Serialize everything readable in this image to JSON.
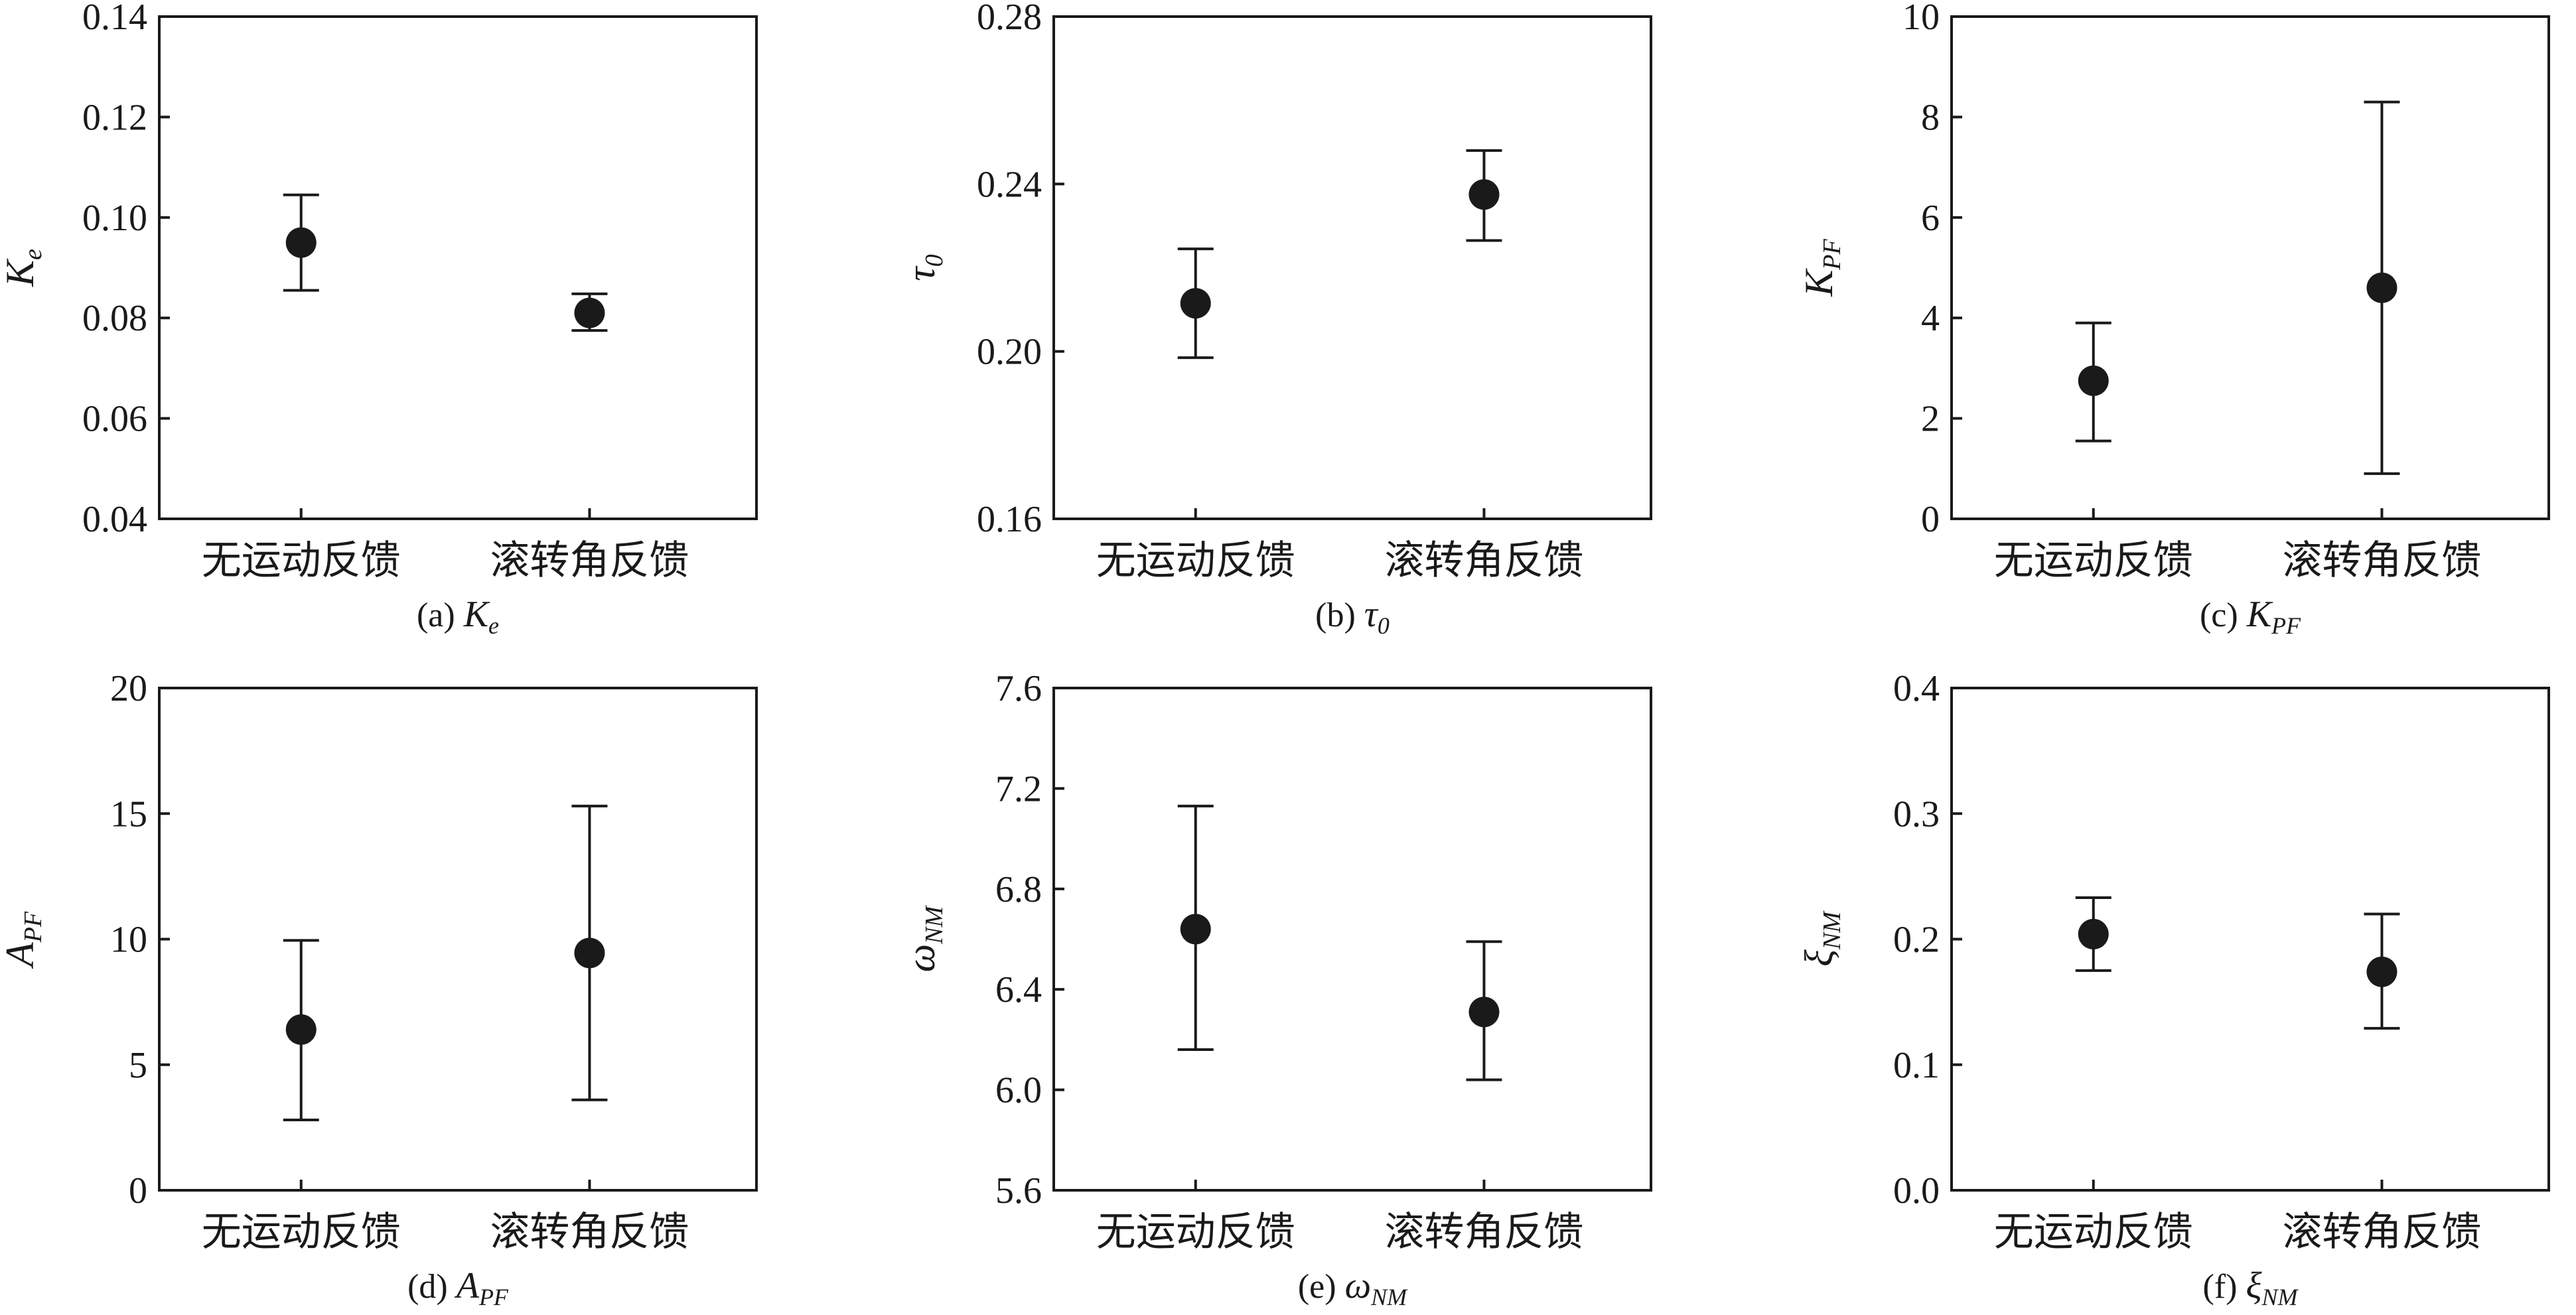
{
  "chart_data": [
    {
      "type": "scatter",
      "panel": "a",
      "caption": "(a) ",
      "caption_var": "K",
      "caption_sub": "e",
      "ylabel_var": "K",
      "ylabel_sub": "e",
      "categories": [
        "无运动反馈",
        "滚转角反馈"
      ],
      "ylim": [
        0.04,
        0.14
      ],
      "yticks": [
        0.04,
        0.06,
        0.08,
        0.1,
        0.12,
        0.14
      ],
      "ytick_labels": [
        "0.04",
        "0.06",
        "0.08",
        "0.10",
        "0.12",
        "0.14"
      ],
      "values": [
        0.095,
        0.081
      ],
      "err_low": [
        0.0855,
        0.0775
      ],
      "err_high": [
        0.1045,
        0.0848
      ]
    },
    {
      "type": "scatter",
      "panel": "b",
      "caption": "(b) ",
      "caption_var": "τ",
      "caption_sub": "0",
      "ylabel_var": "τ",
      "ylabel_sub": "0",
      "categories": [
        "无运动反馈",
        "滚转角反馈"
      ],
      "ylim": [
        0.16,
        0.28
      ],
      "yticks": [
        0.16,
        0.2,
        0.24,
        0.28
      ],
      "ytick_labels": [
        "0.16",
        "0.20",
        "0.24",
        "0.28"
      ],
      "values": [
        0.2115,
        0.2375
      ],
      "err_low": [
        0.1985,
        0.2265
      ],
      "err_high": [
        0.2245,
        0.248
      ]
    },
    {
      "type": "scatter",
      "panel": "c",
      "caption": "(c) ",
      "caption_var": "K",
      "caption_sub": "PF",
      "ylabel_var": "K",
      "ylabel_sub": "PF",
      "categories": [
        "无运动反馈",
        "滚转角反馈"
      ],
      "ylim": [
        0,
        10
      ],
      "yticks": [
        0,
        2,
        4,
        6,
        8,
        10
      ],
      "ytick_labels": [
        "0",
        "2",
        "4",
        "6",
        "8",
        "10"
      ],
      "values": [
        2.75,
        4.6
      ],
      "err_low": [
        1.55,
        0.9
      ],
      "err_high": [
        3.9,
        8.3
      ]
    },
    {
      "type": "scatter",
      "panel": "d",
      "caption": "(d) ",
      "caption_var": "A",
      "caption_sub": "PF",
      "ylabel_var": "A",
      "ylabel_sub": "PF",
      "categories": [
        "无运动反馈",
        "滚转角反馈"
      ],
      "ylim": [
        0,
        20
      ],
      "yticks": [
        0,
        5,
        10,
        15,
        20
      ],
      "ytick_labels": [
        "0",
        "5",
        "10",
        "15",
        "20"
      ],
      "values": [
        6.4,
        9.45
      ],
      "err_low": [
        2.8,
        3.6
      ],
      "err_high": [
        9.95,
        15.3
      ]
    },
    {
      "type": "scatter",
      "panel": "e",
      "caption": "(e) ",
      "caption_var": "ω",
      "caption_sub": "NM",
      "ylabel_var": "ω",
      "ylabel_sub": "NM",
      "categories": [
        "无运动反馈",
        "滚转角反馈"
      ],
      "ylim": [
        5.6,
        7.6
      ],
      "yticks": [
        5.6,
        6.0,
        6.4,
        6.8,
        7.2,
        7.6
      ],
      "ytick_labels": [
        "5.6",
        "6.0",
        "6.4",
        "6.8",
        "7.2",
        "7.6"
      ],
      "values": [
        6.64,
        6.31
      ],
      "err_low": [
        6.16,
        6.04
      ],
      "err_high": [
        7.13,
        6.59
      ]
    },
    {
      "type": "scatter",
      "panel": "f",
      "caption": "(f) ",
      "caption_var": "ξ",
      "caption_sub": "NM",
      "ylabel_var": "ξ",
      "ylabel_sub": "NM",
      "categories": [
        "无运动反馈",
        "滚转角反馈"
      ],
      "ylim": [
        0.0,
        0.4
      ],
      "yticks": [
        0.0,
        0.1,
        0.2,
        0.3,
        0.4
      ],
      "ytick_labels": [
        "0.0",
        "0.1",
        "0.2",
        "0.3",
        "0.4"
      ],
      "values": [
        0.204,
        0.174
      ],
      "err_low": [
        0.175,
        0.129
      ],
      "err_high": [
        0.233,
        0.22
      ]
    }
  ]
}
